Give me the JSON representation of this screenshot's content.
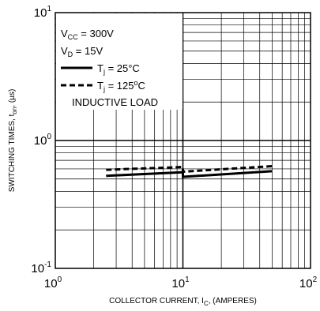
{
  "chart_data": {
    "type": "line",
    "xscale": "log",
    "yscale": "log",
    "xlim": [
      1,
      100
    ],
    "ylim": [
      0.1,
      10
    ],
    "grid": true,
    "xlabel": "COLLECTOR CURRENT, I_C, (AMPERES)",
    "xlabel_parts": {
      "pre": "COLLECTOR CURRENT, I",
      "sub": "C",
      "post": ", (AMPERES)"
    },
    "ylabel": "SWITCHING TIMES, t_on, (µs)",
    "ylabel_parts": {
      "pre": "SWITCHING TIMES, t",
      "sub": "on",
      "post": ", (µs)"
    },
    "x_ticks": [
      {
        "base": "10",
        "exp": "0",
        "value": 1
      },
      {
        "base": "10",
        "exp": "1",
        "value": 10
      },
      {
        "base": "10",
        "exp": "2",
        "value": 100
      }
    ],
    "y_ticks": [
      {
        "base": "10",
        "exp": "-1",
        "value": 0.1
      },
      {
        "base": "10",
        "exp": "0",
        "value": 1
      },
      {
        "base": "10",
        "exp": "1",
        "value": 10
      }
    ],
    "legend_placement": "top-left",
    "conditions": [
      {
        "pre": "V",
        "sub": "CC",
        "post": " = 300V"
      },
      {
        "pre": "V",
        "sub": "D",
        "post": " = 15V"
      }
    ],
    "legend_footer": "INDUCTIVE LOAD",
    "series": [
      {
        "name": "Tj = 25°C",
        "label_parts": {
          "pre": "T",
          "sub": "j",
          "post": " = 25°C",
          "sup": ""
        },
        "style": "solid",
        "color": "#000000",
        "x": [
          2.5,
          10,
          10,
          50
        ],
        "y": [
          0.53,
          0.565,
          0.52,
          0.575
        ]
      },
      {
        "name": "Tj = 125°C",
        "label_parts": {
          "pre": "T",
          "sub": "j",
          "post": " = 125",
          "sup": "o",
          "post2": "C"
        },
        "style": "dashed",
        "color": "#000000",
        "x": [
          2.5,
          10,
          10,
          50
        ],
        "y": [
          0.59,
          0.62,
          0.57,
          0.63
        ]
      }
    ]
  }
}
